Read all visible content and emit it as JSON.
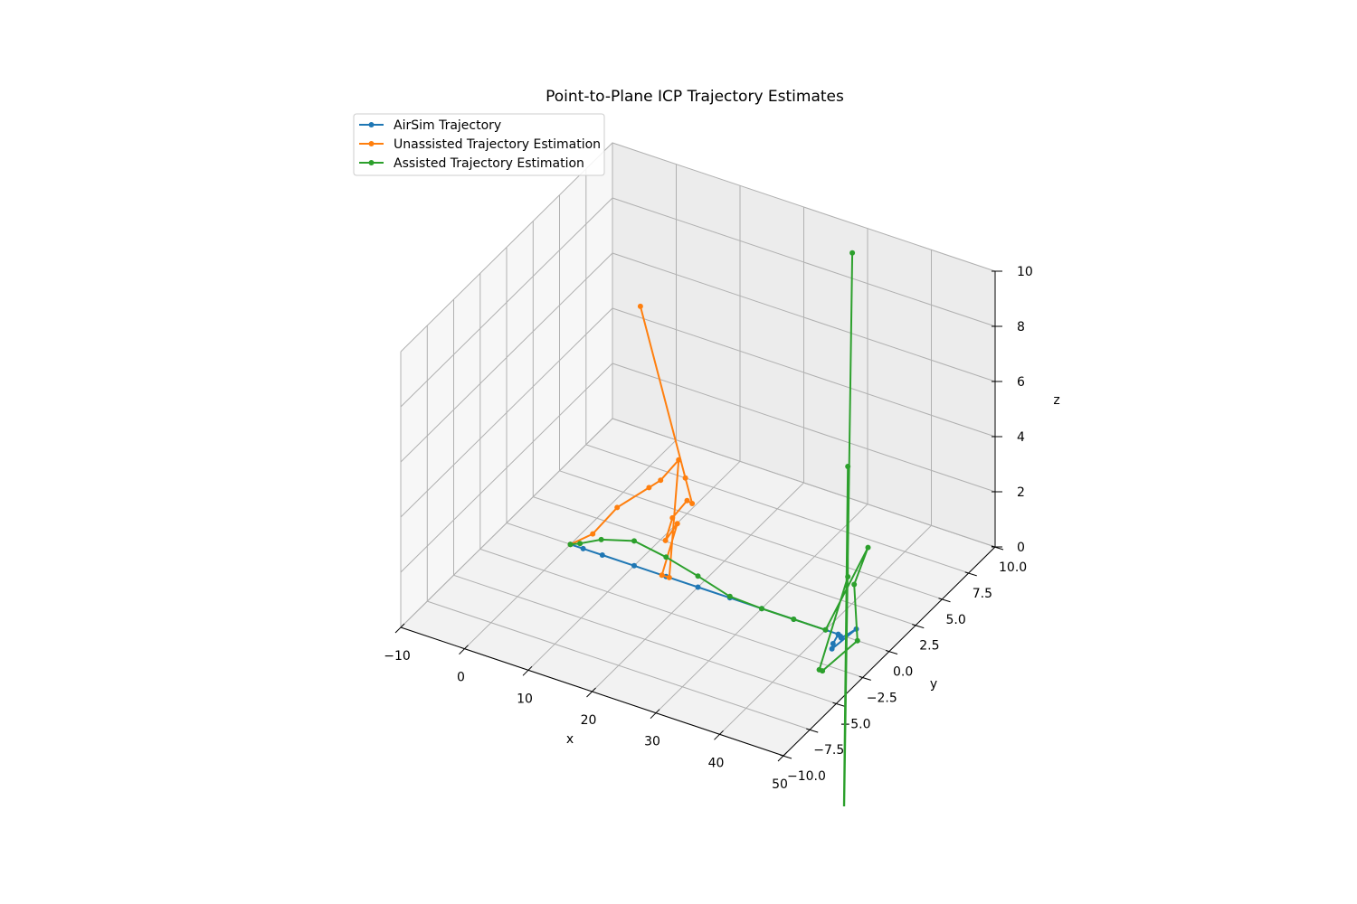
{
  "chart_data": {
    "type": "line3d",
    "title": "Point-to-Plane ICP Trajectory Estimates",
    "xlabel": "x",
    "ylabel": "y",
    "zlabel": "z",
    "xlim": [
      -10,
      50
    ],
    "ylim": [
      -10,
      10
    ],
    "zlim": [
      0,
      10
    ],
    "x_ticks": [
      -10,
      0,
      10,
      20,
      30,
      40,
      50
    ],
    "y_ticks": [
      -10,
      -7.5,
      -5,
      -2.5,
      0,
      2.5,
      5,
      7.5,
      10
    ],
    "z_ticks": [
      0,
      2,
      4,
      6,
      8,
      10
    ],
    "x_tick_labels": [
      "−10",
      "0",
      "10",
      "20",
      "30",
      "40",
      "50"
    ],
    "y_tick_labels": [
      "−10.0",
      "−7.5",
      "−5.0",
      "−2.5",
      "0.0",
      "2.5",
      "5.0",
      "7.5",
      "10.0"
    ],
    "z_tick_labels": [
      "0",
      "2",
      "4",
      "6",
      "8",
      "10"
    ],
    "grid": true,
    "legend_position": "top-left",
    "series": [
      {
        "name": "AirSim Trajectory",
        "color": "#1f77b4",
        "x": [
          0,
          2,
          5,
          10,
          15,
          20,
          25,
          30,
          35,
          40,
          42,
          42.5,
          43,
          43.5,
          42.8,
          42.5
        ],
        "y": [
          0,
          0,
          0,
          0,
          0,
          0,
          0,
          0,
          0,
          0,
          0,
          -0.8,
          -1.2,
          0.8,
          -0.2,
          -0.1
        ],
        "z": [
          0,
          0,
          0,
          0,
          0,
          0,
          0,
          0,
          0,
          0,
          0,
          0,
          0,
          0,
          0,
          0
        ]
      },
      {
        "name": "Unassisted Trajectory Estimation",
        "color": "#ff7f0e",
        "x": [
          0,
          3,
          6,
          9,
          9.5,
          10.5,
          15.5,
          16,
          15.6,
          15.9,
          16,
          16.3,
          16.6,
          16.7,
          14.3
        ],
        "y": [
          0,
          0.3,
          0.8,
          2,
          2.8,
          3.9,
          0,
          -1,
          0.7,
          -0.6,
          0,
          1.2,
          1.5,
          0.8,
          -2
        ],
        "z": [
          0,
          0.5,
          1.5,
          2.0,
          2.0,
          2.4,
          0.0,
          0.5,
          1.7,
          1.6,
          2.2,
          2.4,
          2.2,
          3.4,
          10.5
        ]
      },
      {
        "name": "Assisted Trajectory Estimation",
        "color": "#2ca02c",
        "x": [
          0,
          2,
          5,
          10,
          15,
          20,
          25,
          30,
          35,
          40,
          45,
          44.5,
          45,
          44.5,
          44,
          43.5,
          43.5,
          42.7,
          44.2
        ],
        "y": [
          0,
          -0.3,
          -0.1,
          0,
          0,
          0,
          0,
          0,
          0,
          0,
          1,
          0,
          0,
          -3,
          -3,
          0,
          0,
          0,
          0
        ],
        "z": [
          0,
          0.3,
          0.6,
          0.9,
          0.7,
          0.4,
          0.05,
          0,
          0,
          0,
          3,
          2,
          0,
          0,
          0,
          2.2,
          6.2,
          -10,
          14
        ]
      }
    ]
  }
}
